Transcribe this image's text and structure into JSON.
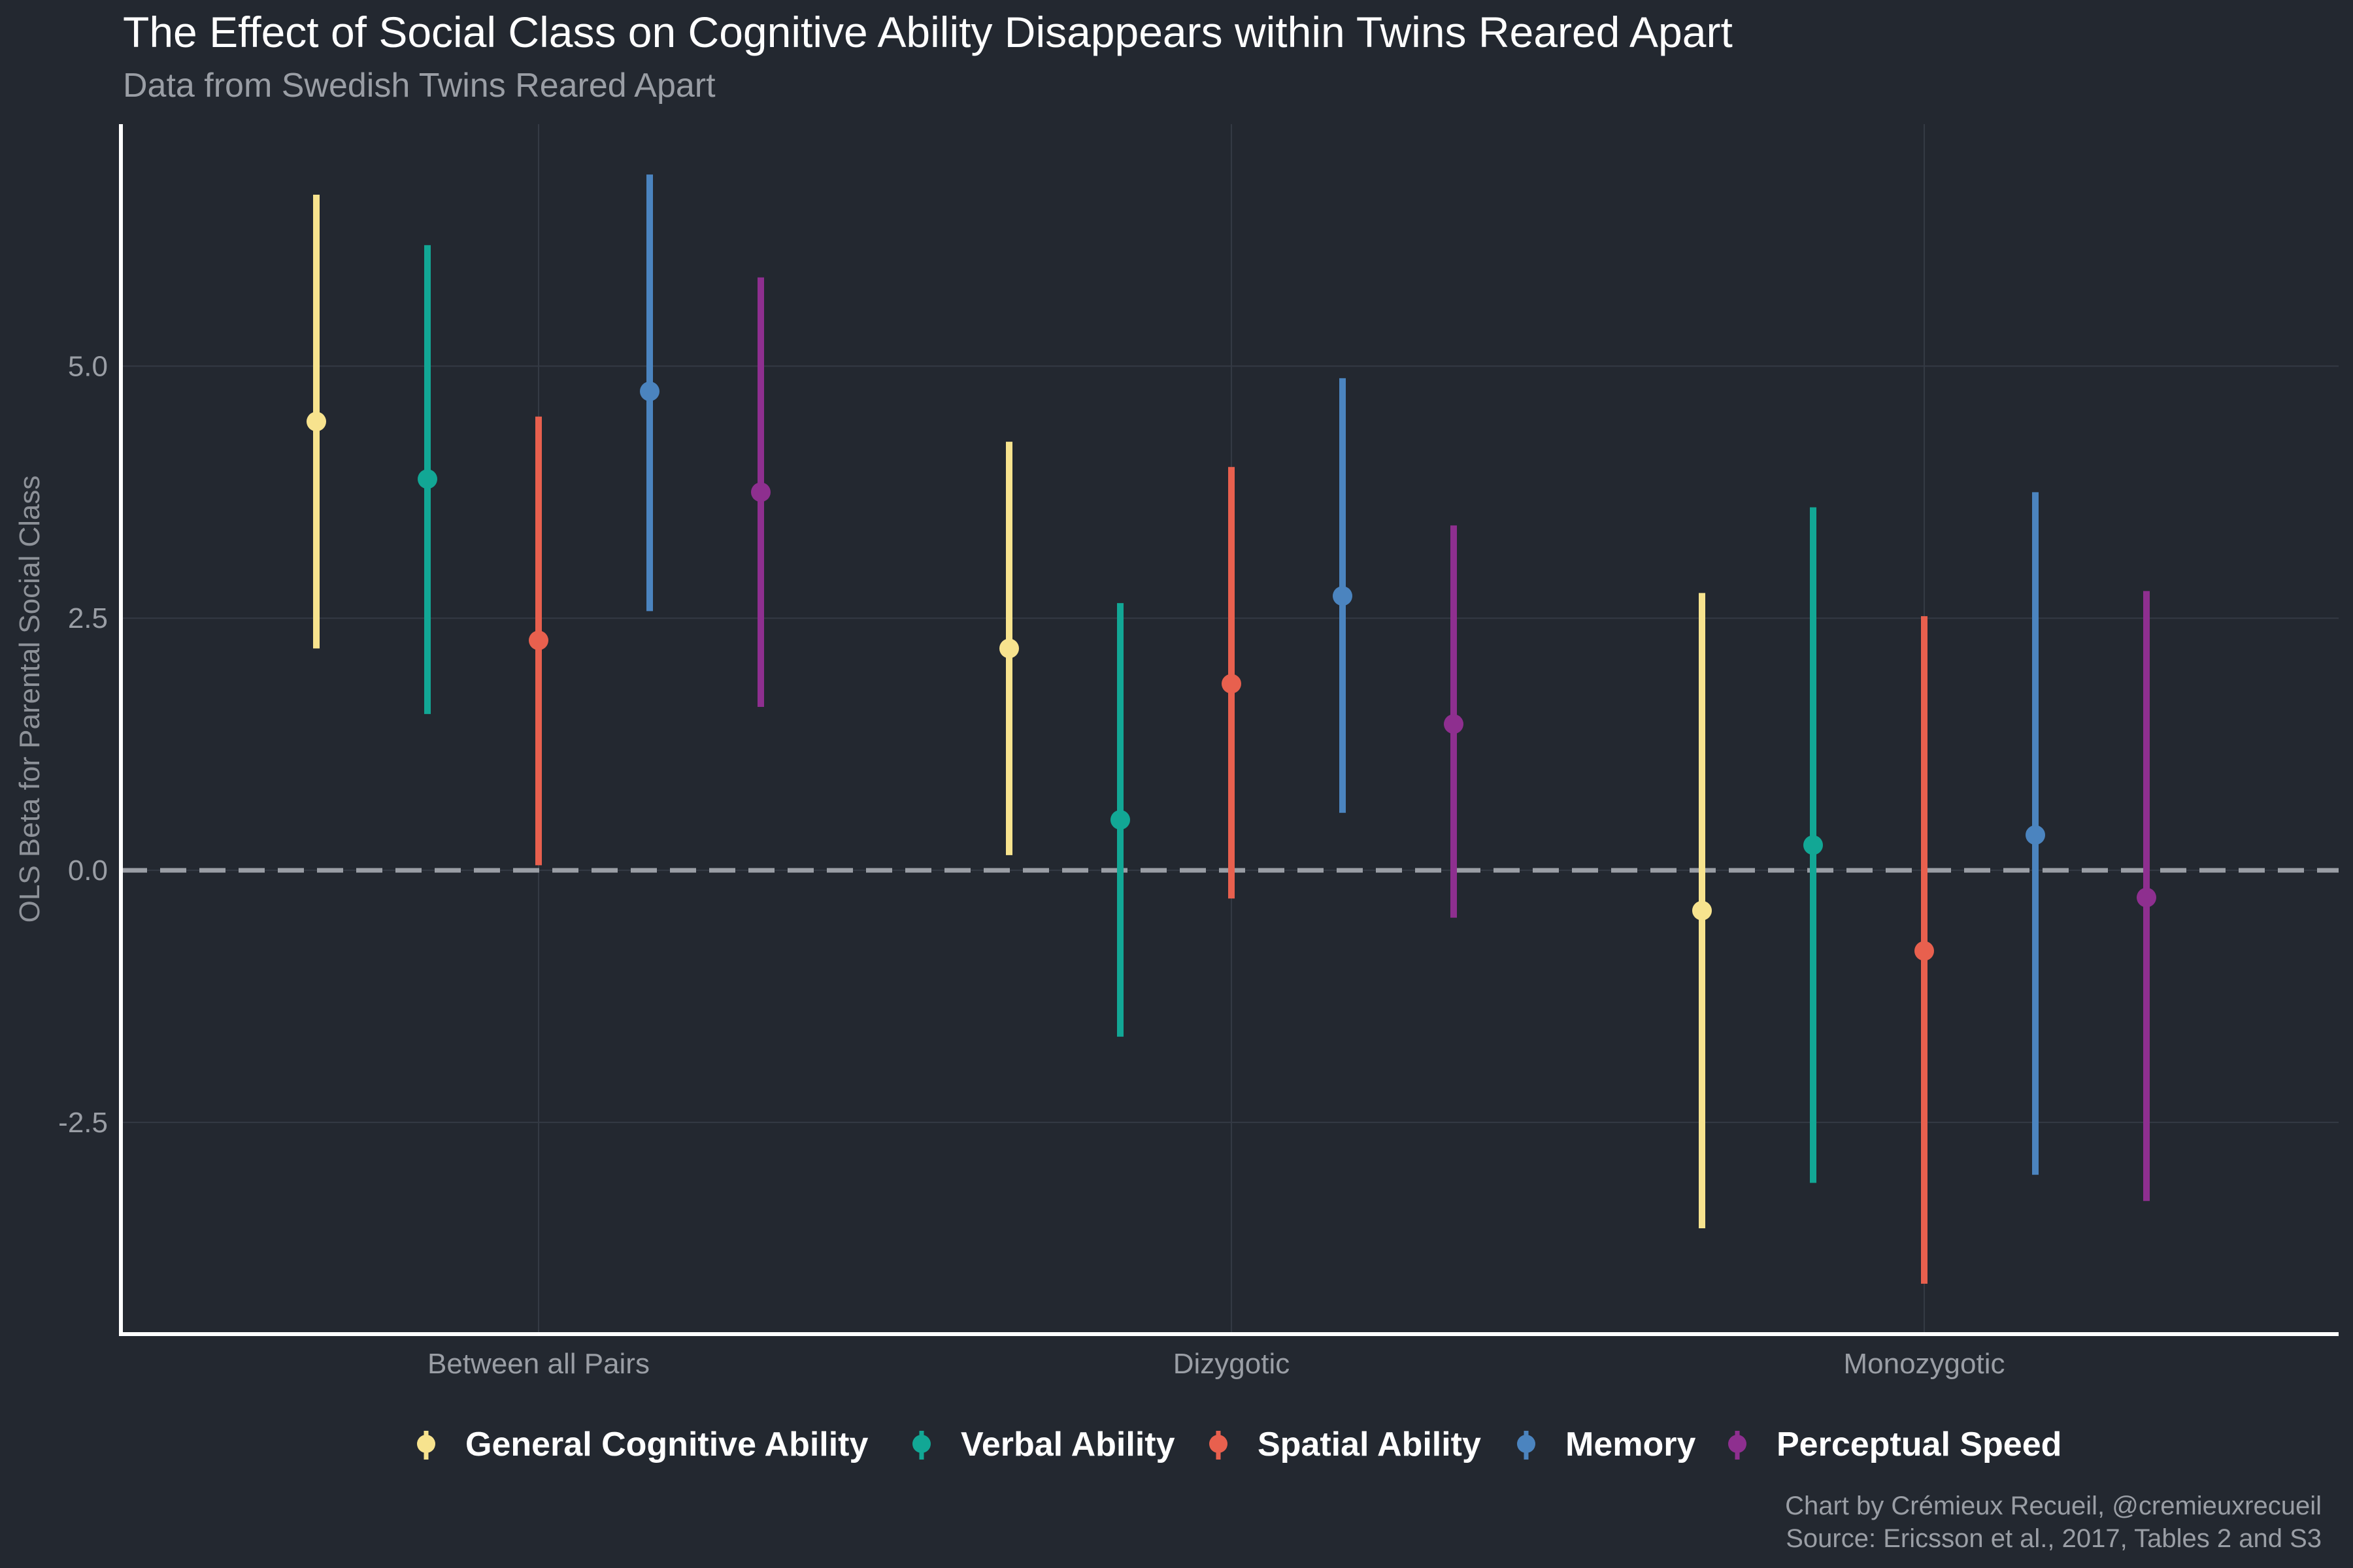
{
  "chart_data": {
    "type": "errorbar",
    "title": "The Effect of Social Class on Cognitive Ability Disappears within Twins Reared Apart",
    "subtitle": "Data from Swedish Twins Reared Apart",
    "ylabel": "OLS Beta for Parental Social Class",
    "xlabel": "",
    "ylim": [
      -4.6,
      7.4
    ],
    "yticks": [
      -2.5,
      0.0,
      2.5,
      5.0
    ],
    "ytick_labels": [
      "-2.5",
      "0.0",
      "2.5",
      "5.0"
    ],
    "grid": true,
    "reference_line": 0,
    "legend_position": "bottom",
    "categories": [
      "Between all Pairs",
      "Dizygotic",
      "Monozygotic"
    ],
    "series": [
      {
        "name": "General Cognitive Ability",
        "color": "#f7e38e",
        "values": [
          4.45,
          2.2,
          -0.4
        ],
        "lower": [
          2.2,
          0.15,
          -3.55
        ],
        "upper": [
          6.7,
          4.25,
          2.75
        ]
      },
      {
        "name": "Verbal Ability",
        "color": "#12a795",
        "values": [
          3.88,
          0.5,
          0.25
        ],
        "lower": [
          1.55,
          -1.65,
          -3.1
        ],
        "upper": [
          6.2,
          2.65,
          3.6
        ]
      },
      {
        "name": "Spatial Ability",
        "color": "#e8604e",
        "values": [
          2.28,
          1.85,
          -0.8
        ],
        "lower": [
          0.05,
          -0.28,
          -4.1
        ],
        "upper": [
          4.5,
          4.0,
          2.52
        ]
      },
      {
        "name": "Memory",
        "color": "#4b84bf",
        "values": [
          4.75,
          2.72,
          0.35
        ],
        "lower": [
          2.57,
          0.57,
          -3.02
        ],
        "upper": [
          6.9,
          4.88,
          3.75
        ]
      },
      {
        "name": "Perceptual Speed",
        "color": "#8e2f8f",
        "values": [
          3.75,
          1.45,
          -0.27
        ],
        "lower": [
          1.62,
          -0.47,
          -3.28
        ],
        "upper": [
          5.88,
          3.42,
          2.77
        ]
      }
    ],
    "caption": [
      "Chart by Crémieux Recueil, @cremieuxrecueil",
      "Source: Ericsson et al., 2017, Tables 2 and S3"
    ]
  }
}
